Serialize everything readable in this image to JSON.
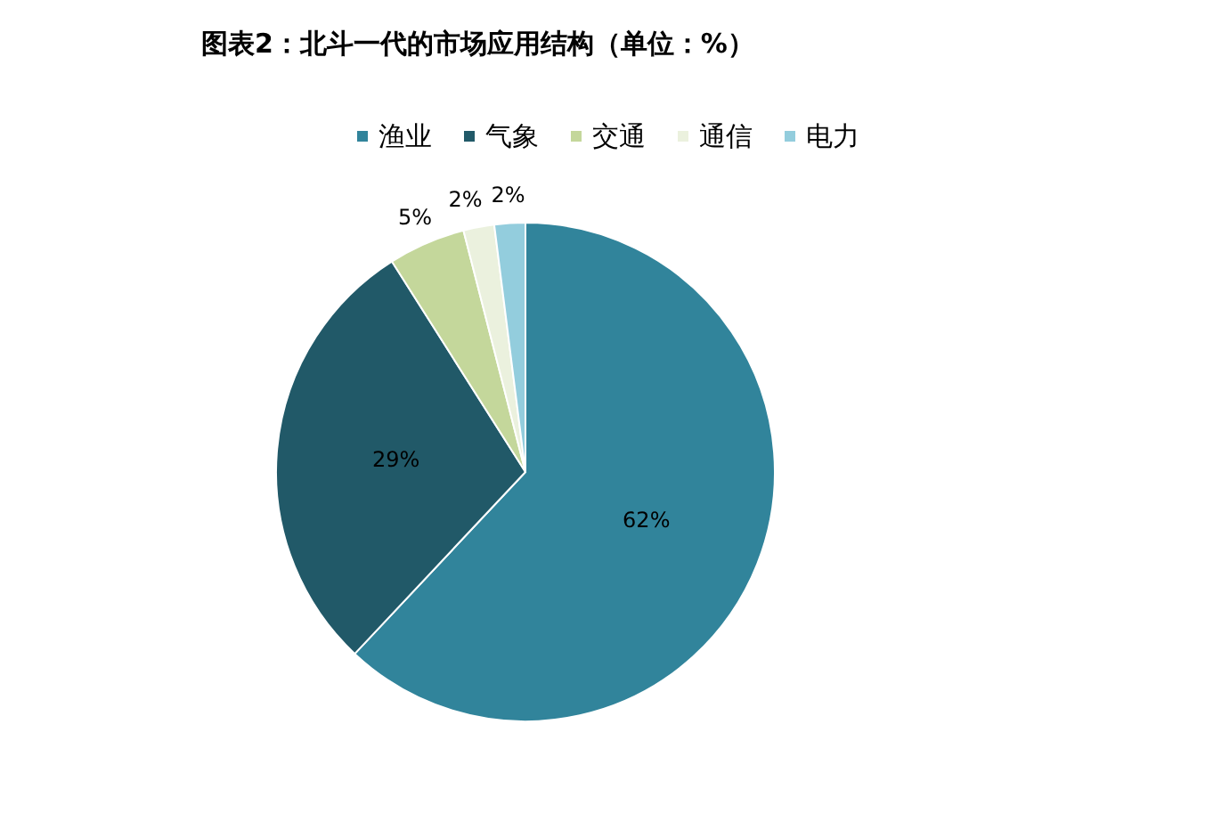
{
  "chart_data": {
    "type": "pie",
    "title": "图表2：北斗一代的市场应用结构（单位：%）",
    "categories": [
      "渔业",
      "气象",
      "交通",
      "通信",
      "电力"
    ],
    "values": [
      62,
      29,
      5,
      2,
      2
    ],
    "colors": [
      "#31849b",
      "#215968",
      "#c4d79b",
      "#ebf1de",
      "#93cddd"
    ],
    "value_labels": [
      "62%",
      "29%",
      "5%",
      "2%",
      "2%"
    ],
    "legend": "top"
  }
}
